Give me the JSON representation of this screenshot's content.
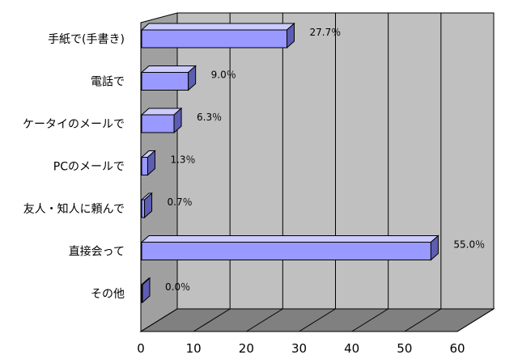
{
  "chart_data": {
    "type": "bar",
    "orientation": "horizontal",
    "style": "3d",
    "categories": [
      "手紙で(手書き)",
      "電話で",
      "ケータイのメールで",
      "PCのメールで",
      "友人・知人に頼んで",
      "直接会って",
      "その他"
    ],
    "values": [
      27.7,
      9.0,
      6.3,
      1.3,
      0.7,
      55.0,
      0.0
    ],
    "value_labels": [
      "27.7％",
      "9.0％",
      "6.3％",
      "1.3％",
      "0.7％",
      "55.0％",
      "0.0％"
    ],
    "xlim": [
      0,
      60
    ],
    "xticks": [
      0,
      10,
      20,
      30,
      40,
      50,
      60
    ],
    "grid": true,
    "legend": "none",
    "colors": {
      "bar_front": "#9999ff",
      "bar_top": "#ccccff",
      "bar_side": "#5d5db2",
      "wall": "#c0c0c0",
      "floor": "#808080",
      "grid": "#000000"
    }
  }
}
